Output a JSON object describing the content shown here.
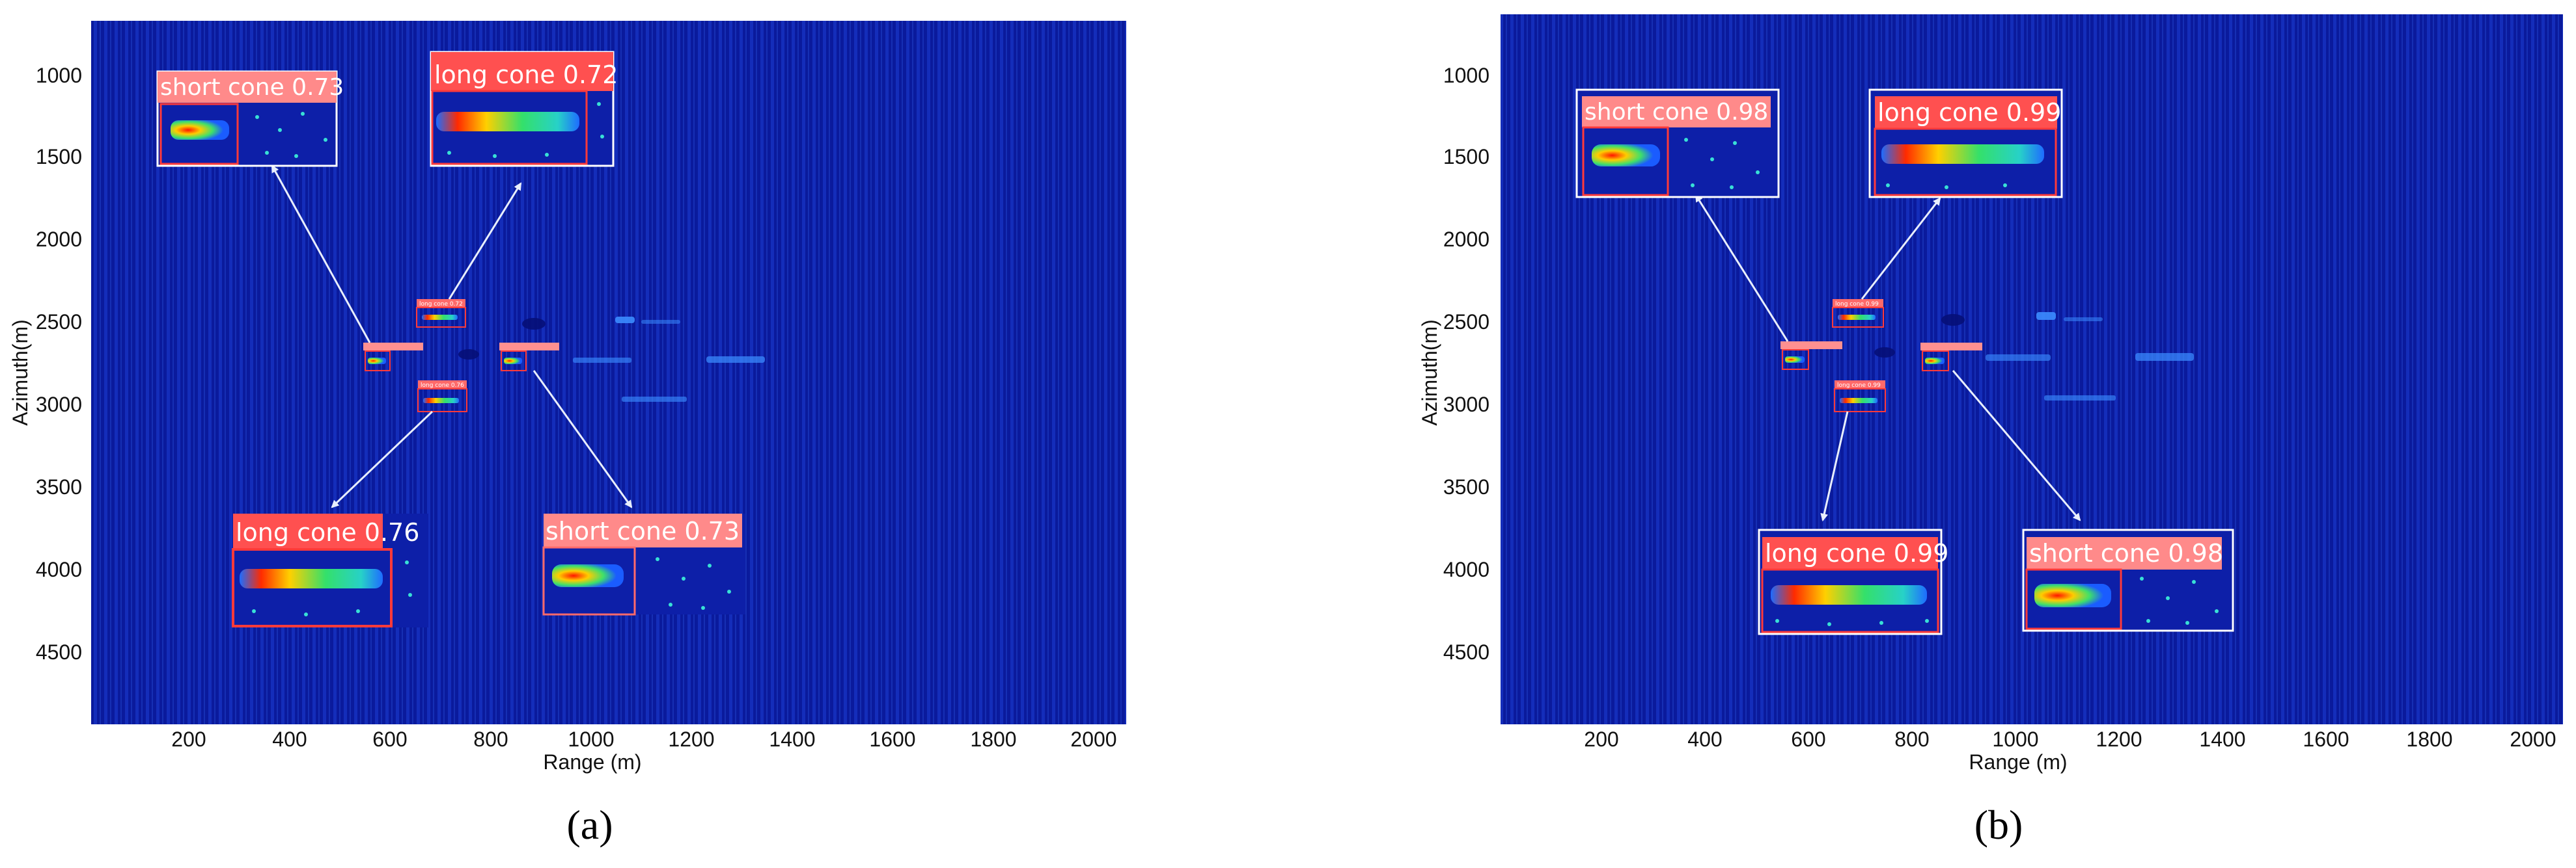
{
  "panels": [
    {
      "tag": "(a)",
      "xlabel": "Range (m)",
      "ylabel": "Azimuth(m)",
      "xticks": [
        "200",
        "400",
        "600",
        "800",
        "1000",
        "1200",
        "1400",
        "1600",
        "1800",
        "2000"
      ],
      "yticks": [
        "1000",
        "1500",
        "2000",
        "2500",
        "3000",
        "3500",
        "4000",
        "4500"
      ],
      "insets": [
        {
          "label": "short cone 0.73"
        },
        {
          "label": "long cone 0.72"
        },
        {
          "label": "long cone 0.76"
        },
        {
          "label": "short cone 0.73"
        }
      ],
      "small_labels": [
        "long cone 0.72",
        "long cone 0.76"
      ]
    },
    {
      "tag": "(b)",
      "xlabel": "Range (m)",
      "ylabel": "Azimuth(m)",
      "xticks": [
        "200",
        "400",
        "600",
        "800",
        "1000",
        "1200",
        "1400",
        "1600",
        "1800",
        "2000"
      ],
      "yticks": [
        "1000",
        "1500",
        "2000",
        "2500",
        "3000",
        "3500",
        "4000",
        "4500"
      ],
      "insets": [
        {
          "label": "short cone 0.98"
        },
        {
          "label": "long cone 0.99"
        },
        {
          "label": "long cone 0.99"
        },
        {
          "label": "short cone 0.98"
        }
      ],
      "small_labels": [
        "long cone 0.99",
        "long cone 0.99"
      ]
    }
  ],
  "colors": {
    "background": "#0a1a9c",
    "stripe": "#1a3bd6",
    "det_box": "#ff3a3a",
    "label_bg": "#ff4a4a",
    "arrow": "#e8eefc"
  }
}
